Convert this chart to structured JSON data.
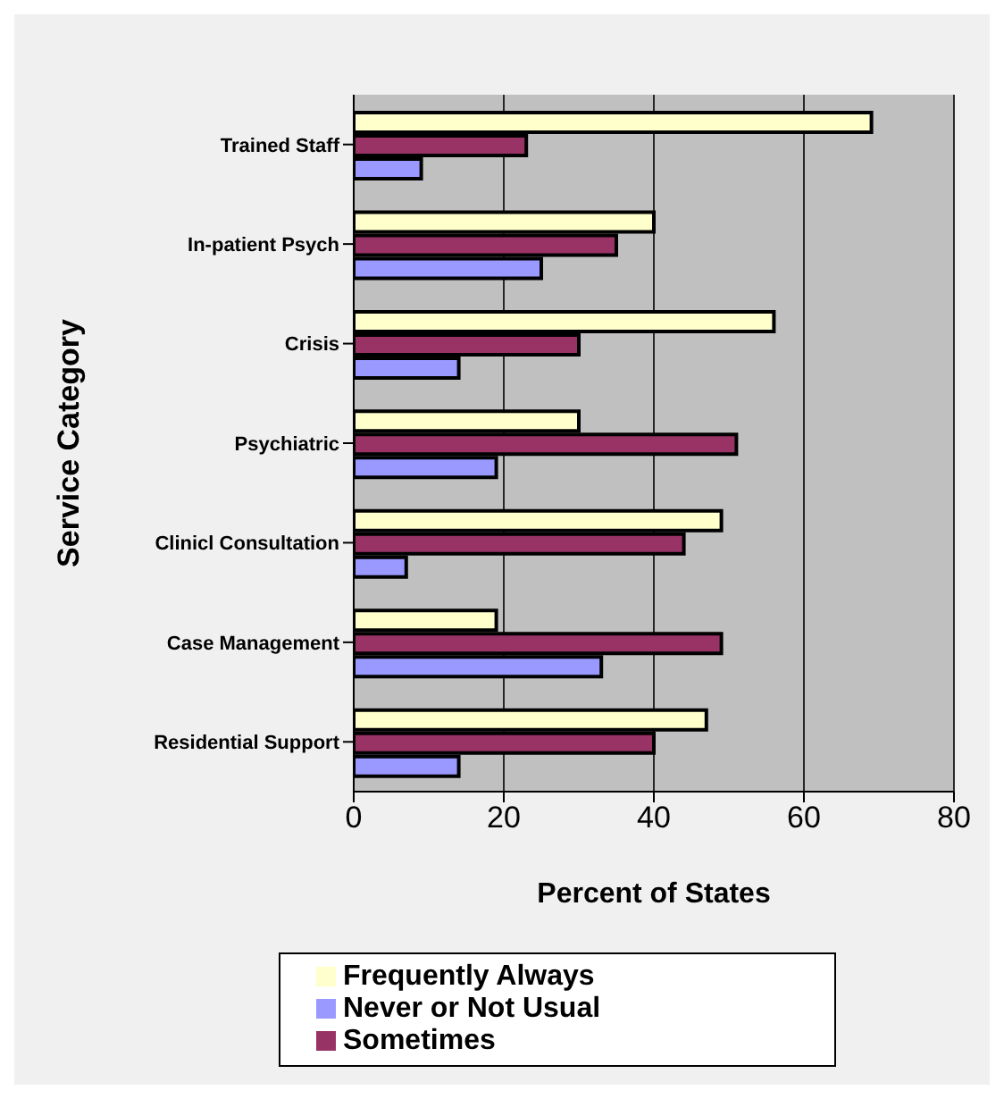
{
  "chart_data": {
    "type": "bar",
    "orientation": "horizontal",
    "xlabel": "Percent of States",
    "ylabel": "Service Category",
    "categories": [
      "Trained Staff",
      "In-patient Psych",
      "Crisis",
      "Psychiatric",
      "Clinicl Consultation",
      "Case Management",
      "Residential Support"
    ],
    "series": [
      {
        "name": "Frequently Always",
        "color": "#ffffcc",
        "values": [
          69,
          40,
          56,
          30,
          49,
          19,
          47
        ]
      },
      {
        "name": "Sometimes",
        "color": "#993366",
        "values": [
          23,
          35,
          30,
          51,
          44,
          49,
          40
        ]
      },
      {
        "name": "Never or Not Usual",
        "color": "#9999ff",
        "values": [
          9,
          25,
          14,
          19,
          7,
          33,
          14
        ]
      }
    ],
    "xlim": [
      0,
      80
    ],
    "xticks": [
      0,
      20,
      40,
      60,
      80
    ],
    "grid": "x",
    "legend": "bottom"
  }
}
